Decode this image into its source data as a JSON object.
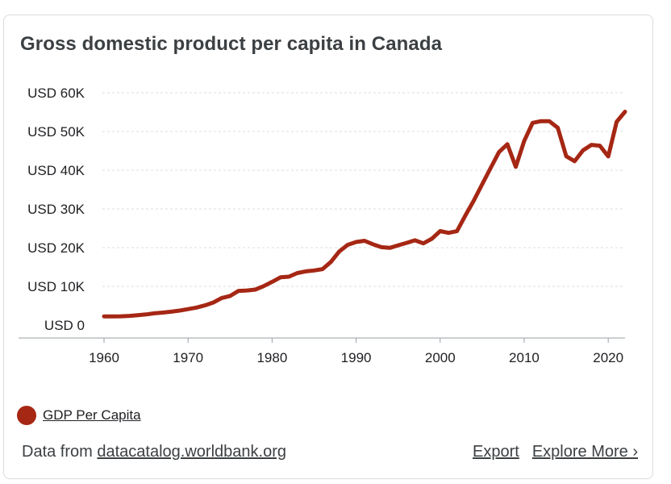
{
  "card": {
    "title": "Gross domestic product per capita in Canada"
  },
  "legend": {
    "label": "GDP Per Capita",
    "color": "#a52714"
  },
  "footer": {
    "source_prefix": "Data from",
    "source_link": "datacatalog.worldbank.org",
    "export_label": "Export",
    "explore_label": "Explore More ›"
  },
  "chart_data": {
    "type": "line",
    "title": "Gross domestic product per capita in Canada",
    "xlabel": "",
    "ylabel": "",
    "xlim": [
      1960,
      2022
    ],
    "ylim": [
      0,
      60000
    ],
    "grid": true,
    "legend_position": "bottom-left",
    "x_ticks": [
      1960,
      1970,
      1980,
      1990,
      2000,
      2010,
      2020
    ],
    "x_tick_labels": [
      "1960",
      "1970",
      "1980",
      "1990",
      "2000",
      "2010",
      "2020"
    ],
    "y_ticks": [
      0,
      10000,
      20000,
      30000,
      40000,
      50000,
      60000
    ],
    "y_tick_labels": [
      "USD 0",
      "USD 10K",
      "USD 20K",
      "USD 30K",
      "USD 40K",
      "USD 50K",
      "USD 60K"
    ],
    "series": [
      {
        "name": "GDP Per Capita",
        "color": "#a52714",
        "x": [
          1960,
          1961,
          1962,
          1963,
          1964,
          1965,
          1966,
          1967,
          1968,
          1969,
          1970,
          1971,
          1972,
          1973,
          1974,
          1975,
          1976,
          1977,
          1978,
          1979,
          1980,
          1981,
          1982,
          1983,
          1984,
          1985,
          1986,
          1987,
          1988,
          1989,
          1990,
          1991,
          1992,
          1993,
          1994,
          1995,
          1996,
          1997,
          1998,
          1999,
          2000,
          2001,
          2002,
          2003,
          2004,
          2005,
          2006,
          2007,
          2008,
          2009,
          2010,
          2011,
          2012,
          2013,
          2014,
          2015,
          2016,
          2017,
          2018,
          2019,
          2020,
          2021,
          2022
        ],
        "values": [
          2260,
          2240,
          2270,
          2380,
          2550,
          2760,
          3040,
          3220,
          3460,
          3760,
          4120,
          4520,
          5080,
          5840,
          7010,
          7520,
          8830,
          8930,
          9160,
          10070,
          11170,
          12340,
          12500,
          13430,
          13880,
          14100,
          14460,
          16310,
          19030,
          20720,
          21450,
          21770,
          20870,
          20130,
          19940,
          20610,
          21230,
          21900,
          21100,
          22300,
          24270,
          23820,
          24260,
          28300,
          32160,
          36380,
          40540,
          44660,
          46710,
          40880,
          47560,
          52220,
          52670,
          52640,
          50960,
          43600,
          42320,
          45130,
          46550,
          46330,
          43560,
          52500,
          55100
        ]
      }
    ]
  }
}
